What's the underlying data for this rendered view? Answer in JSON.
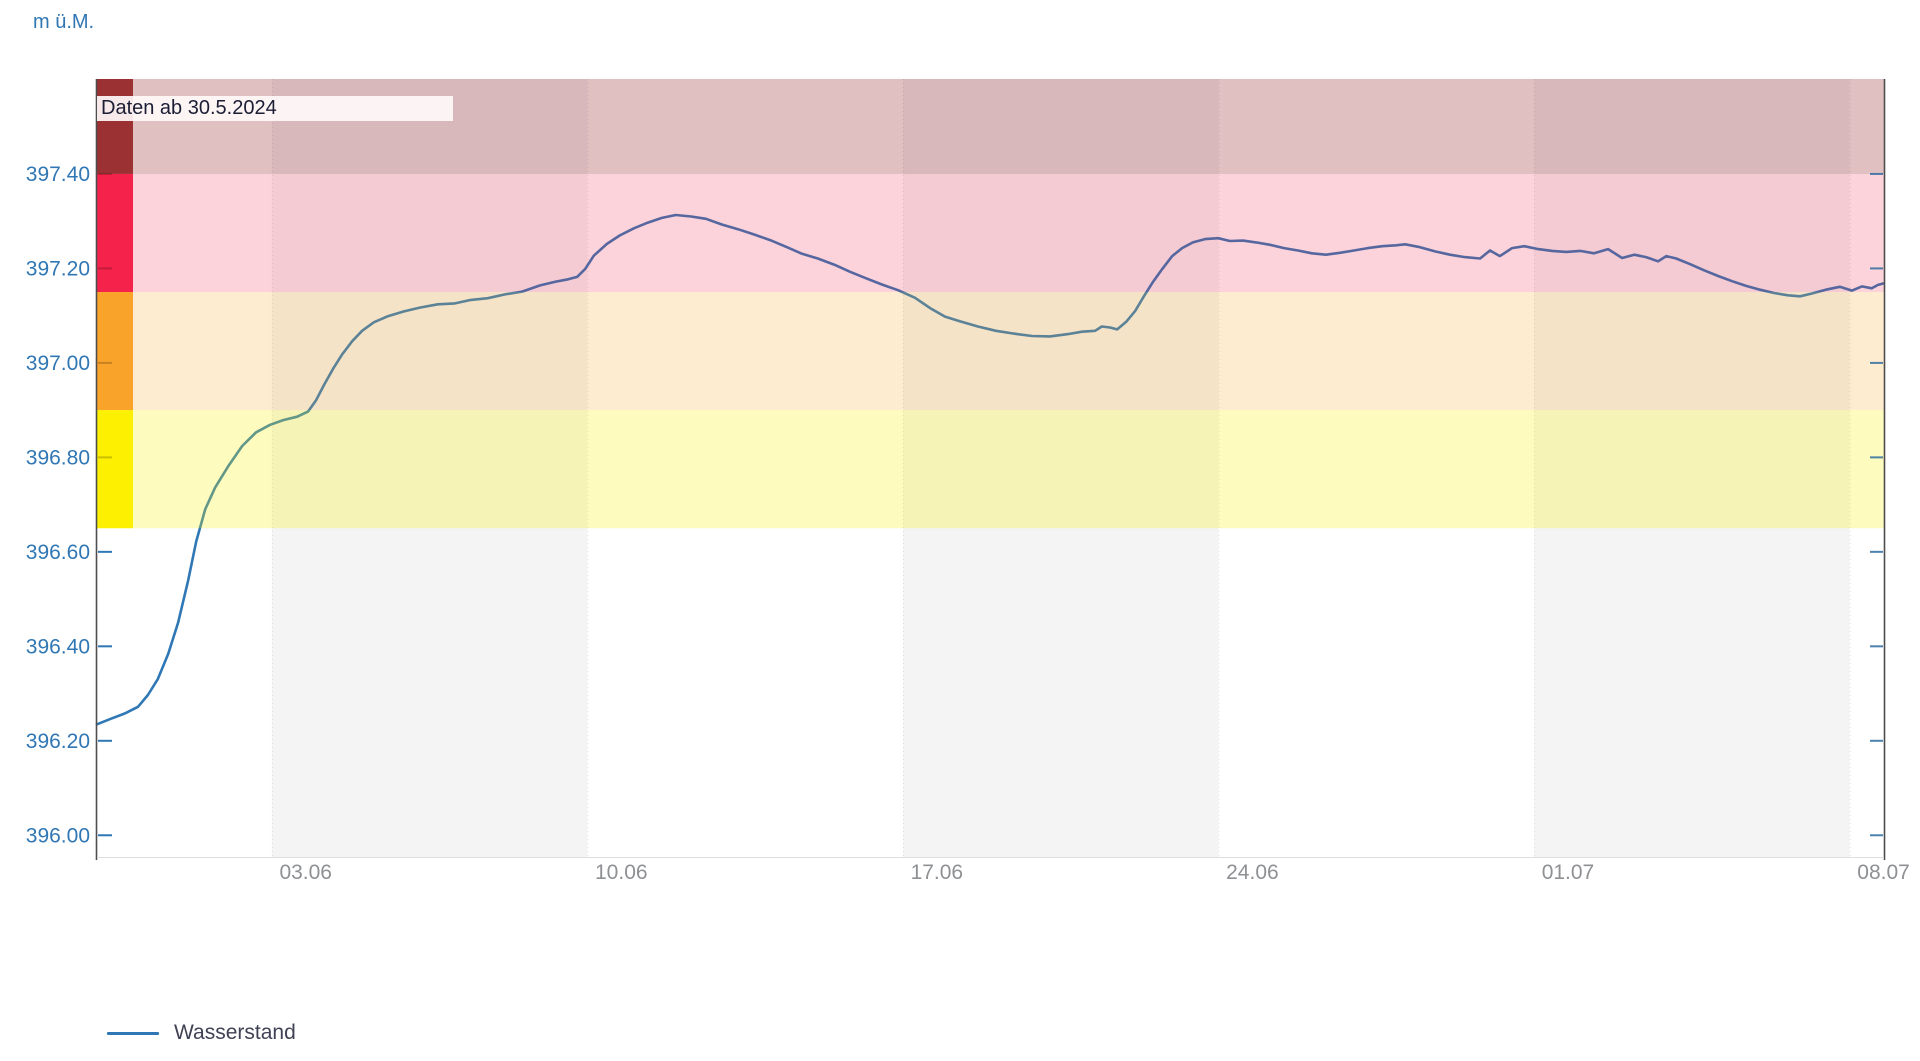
{
  "header": {
    "unit_label": "m ü.M."
  },
  "annotation": {
    "text": "Daten ab 30.5.2024"
  },
  "legend": {
    "items": [
      {
        "label": "Wasserstand",
        "color": "#2F78B5"
      }
    ]
  },
  "colors": {
    "line": "#2F78B5",
    "y_label": "#3077B4",
    "x_label": "#8E9093",
    "axis_line": "#4D4D4D",
    "bottom_line": "#DEDEDE",
    "week_shade": "#F4F4F5",
    "week_grid": "rgba(120,120,120,0.18)",
    "tick_blue": "#3077B4",
    "tick_on_strip": "rgba(0,0,0,0.20)",
    "tick_right": "rgba(47,108,160,0.85)"
  },
  "chart_data": {
    "type": "line",
    "title": "",
    "ylabel": "m ü.M.",
    "annotation": "Daten ab 30.5.2024",
    "legend_position": "bottom-left",
    "grid": "weekly vertical shading",
    "x_axis": {
      "start_date": "30.5.2024",
      "domain_days": [
        0.12,
        39.76
      ],
      "tick_labels": [
        "03.06",
        "10.06",
        "17.06",
        "24.06",
        "01.07",
        "08.07"
      ],
      "tick_days": [
        4.75,
        11.75,
        18.75,
        25.75,
        32.75,
        39.75
      ]
    },
    "y_axis": {
      "domain": [
        395.954,
        397.601
      ],
      "ticks": [
        397.4,
        397.2,
        397.0,
        396.8,
        396.6,
        396.4,
        396.2,
        396.0
      ],
      "tick_labels": [
        "397.40",
        "397.20",
        "397.00",
        "396.80",
        "396.60",
        "396.40",
        "396.20",
        "396.00"
      ]
    },
    "week_bands": {
      "boundaries_days": [
        4,
        11,
        18,
        25,
        32,
        39
      ],
      "shaded_days": [
        [
          4,
          11
        ],
        [
          18,
          25
        ],
        [
          32,
          39
        ]
      ]
    },
    "danger_bands": [
      {
        "from": 397.4,
        "to": 397.601,
        "strip_color": "#9B3133",
        "overlay_rgba": "rgba(153,47,50,0.30)"
      },
      {
        "from": 397.15,
        "to": 397.4,
        "strip_color": "#F5224B",
        "overlay_rgba": "rgba(243,35,74,0.20)"
      },
      {
        "from": 396.9,
        "to": 397.15,
        "strip_color": "#FAA32A",
        "overlay_rgba": "rgba(249,167,41,0.22)"
      },
      {
        "from": 396.65,
        "to": 396.9,
        "strip_color": "#FDF000",
        "overlay_rgba": "rgba(252,240,2,0.26)"
      }
    ],
    "series": [
      {
        "name": "Wasserstand",
        "color": "#2F78B5",
        "unit": "m ü.M.",
        "points": [
          [
            0.12,
            396.235
          ],
          [
            0.41,
            396.246
          ],
          [
            0.74,
            396.258
          ],
          [
            1.03,
            396.272
          ],
          [
            1.25,
            396.297
          ],
          [
            1.47,
            396.331
          ],
          [
            1.7,
            396.384
          ],
          [
            1.92,
            396.45
          ],
          [
            2.14,
            396.539
          ],
          [
            2.32,
            396.622
          ],
          [
            2.52,
            396.69
          ],
          [
            2.74,
            396.736
          ],
          [
            3.03,
            396.781
          ],
          [
            3.34,
            396.824
          ],
          [
            3.65,
            396.853
          ],
          [
            3.96,
            396.869
          ],
          [
            4.25,
            396.879
          ],
          [
            4.56,
            396.886
          ],
          [
            4.8,
            396.897
          ],
          [
            4.98,
            396.921
          ],
          [
            5.16,
            396.954
          ],
          [
            5.36,
            396.988
          ],
          [
            5.55,
            397.017
          ],
          [
            5.78,
            397.046
          ],
          [
            6.0,
            397.068
          ],
          [
            6.26,
            397.086
          ],
          [
            6.58,
            397.099
          ],
          [
            6.93,
            397.109
          ],
          [
            7.28,
            397.117
          ],
          [
            7.68,
            397.124
          ],
          [
            8.06,
            397.126
          ],
          [
            8.39,
            397.133
          ],
          [
            8.79,
            397.137
          ],
          [
            9.17,
            397.145
          ],
          [
            9.55,
            397.151
          ],
          [
            9.95,
            397.164
          ],
          [
            10.3,
            397.172
          ],
          [
            10.57,
            397.177
          ],
          [
            10.77,
            397.182
          ],
          [
            10.95,
            397.199
          ],
          [
            11.14,
            397.227
          ],
          [
            11.43,
            397.252
          ],
          [
            11.72,
            397.27
          ],
          [
            12.03,
            397.285
          ],
          [
            12.34,
            397.297
          ],
          [
            12.65,
            397.307
          ],
          [
            12.96,
            397.313
          ],
          [
            13.3,
            397.31
          ],
          [
            13.63,
            397.305
          ],
          [
            13.98,
            397.293
          ],
          [
            14.34,
            397.283
          ],
          [
            14.69,
            397.272
          ],
          [
            15.05,
            397.26
          ],
          [
            15.4,
            397.246
          ],
          [
            15.76,
            397.231
          ],
          [
            16.11,
            397.221
          ],
          [
            16.47,
            397.208
          ],
          [
            16.82,
            397.193
          ],
          [
            17.18,
            397.179
          ],
          [
            17.53,
            397.166
          ],
          [
            17.89,
            397.154
          ],
          [
            18.26,
            397.138
          ],
          [
            18.6,
            397.116
          ],
          [
            18.93,
            397.098
          ],
          [
            19.26,
            397.088
          ],
          [
            19.66,
            397.077
          ],
          [
            20.06,
            397.068
          ],
          [
            20.46,
            397.062
          ],
          [
            20.86,
            397.057
          ],
          [
            21.26,
            397.056
          ],
          [
            21.66,
            397.061
          ],
          [
            21.97,
            397.066
          ],
          [
            22.26,
            397.068
          ],
          [
            22.41,
            397.077
          ],
          [
            22.59,
            397.075
          ],
          [
            22.75,
            397.071
          ],
          [
            22.95,
            397.087
          ],
          [
            23.15,
            397.11
          ],
          [
            23.35,
            397.142
          ],
          [
            23.55,
            397.172
          ],
          [
            23.75,
            397.199
          ],
          [
            23.97,
            397.226
          ],
          [
            24.19,
            397.243
          ],
          [
            24.43,
            397.255
          ],
          [
            24.7,
            397.262
          ],
          [
            24.99,
            397.264
          ],
          [
            25.25,
            397.258
          ],
          [
            25.54,
            397.259
          ],
          [
            25.83,
            397.255
          ],
          [
            26.14,
            397.25
          ],
          [
            26.45,
            397.243
          ],
          [
            26.76,
            397.238
          ],
          [
            27.07,
            397.232
          ],
          [
            27.38,
            397.229
          ],
          [
            27.69,
            397.233
          ],
          [
            28.0,
            397.238
          ],
          [
            28.31,
            397.243
          ],
          [
            28.63,
            397.247
          ],
          [
            28.94,
            397.249
          ],
          [
            29.14,
            397.251
          ],
          [
            29.47,
            397.245
          ],
          [
            29.8,
            397.236
          ],
          [
            30.13,
            397.229
          ],
          [
            30.46,
            397.224
          ],
          [
            30.8,
            397.221
          ],
          [
            31.02,
            397.238
          ],
          [
            31.24,
            397.226
          ],
          [
            31.51,
            397.243
          ],
          [
            31.78,
            397.247
          ],
          [
            32.09,
            397.241
          ],
          [
            32.4,
            397.237
          ],
          [
            32.71,
            397.235
          ],
          [
            33.02,
            397.237
          ],
          [
            33.33,
            397.232
          ],
          [
            33.64,
            397.241
          ],
          [
            33.95,
            397.222
          ],
          [
            34.22,
            397.229
          ],
          [
            34.48,
            397.224
          ],
          [
            34.75,
            397.215
          ],
          [
            34.93,
            397.226
          ],
          [
            35.15,
            397.221
          ],
          [
            35.46,
            397.209
          ],
          [
            35.77,
            397.196
          ],
          [
            36.08,
            397.184
          ],
          [
            36.39,
            397.173
          ],
          [
            36.7,
            397.163
          ],
          [
            37.01,
            397.155
          ],
          [
            37.32,
            397.148
          ],
          [
            37.63,
            397.143
          ],
          [
            37.9,
            397.141
          ],
          [
            38.16,
            397.147
          ],
          [
            38.47,
            397.155
          ],
          [
            38.78,
            397.161
          ],
          [
            39.05,
            397.153
          ],
          [
            39.27,
            397.162
          ],
          [
            39.49,
            397.158
          ],
          [
            39.62,
            397.165
          ],
          [
            39.74,
            397.168
          ]
        ]
      }
    ]
  }
}
